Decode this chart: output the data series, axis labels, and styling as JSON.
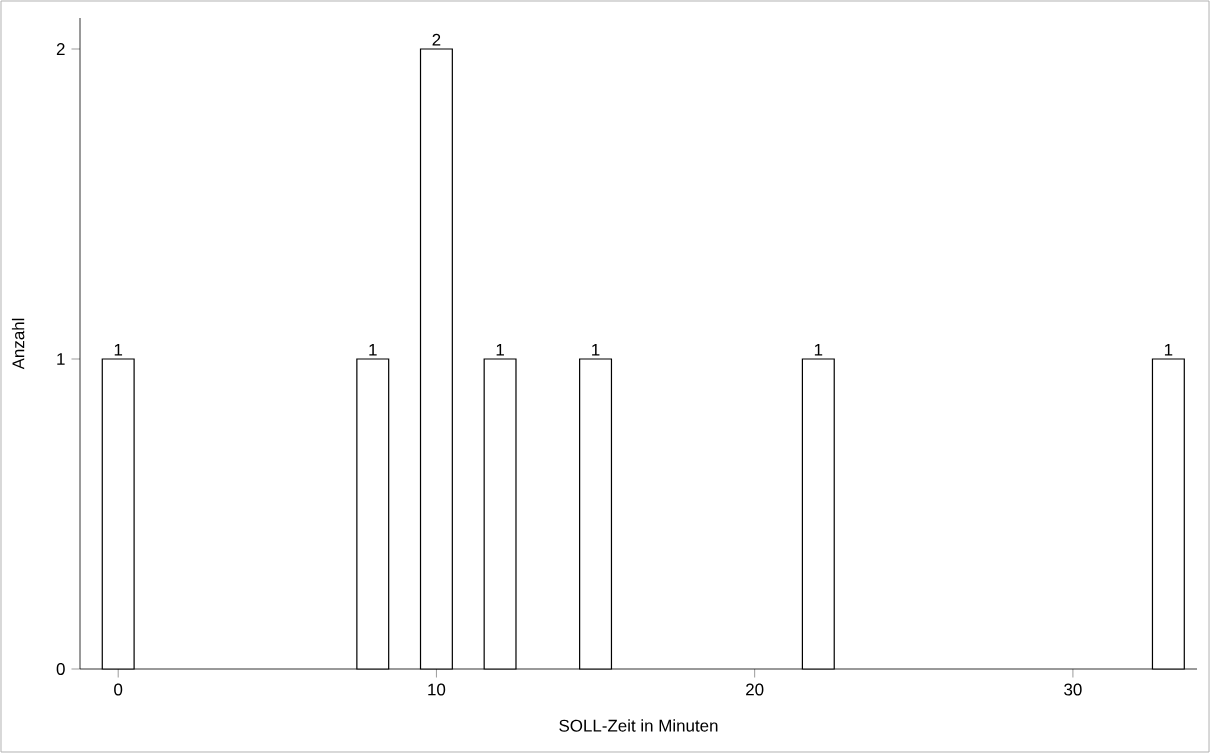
{
  "chart_data": {
    "type": "bar",
    "xlabel": "SOLL-Zeit in Minuten",
    "ylabel": "Anzahl",
    "x": [
      0,
      8,
      10,
      12,
      15,
      22,
      33
    ],
    "values": [
      1,
      1,
      2,
      1,
      1,
      1,
      1
    ],
    "color": "#ffffff",
    "xlim": [
      -1.2,
      33.9
    ],
    "ylim": [
      0,
      2.1
    ],
    "xticks": [
      0,
      10,
      20,
      30
    ],
    "yticks": [
      0,
      1,
      2
    ],
    "data_labels": true
  }
}
